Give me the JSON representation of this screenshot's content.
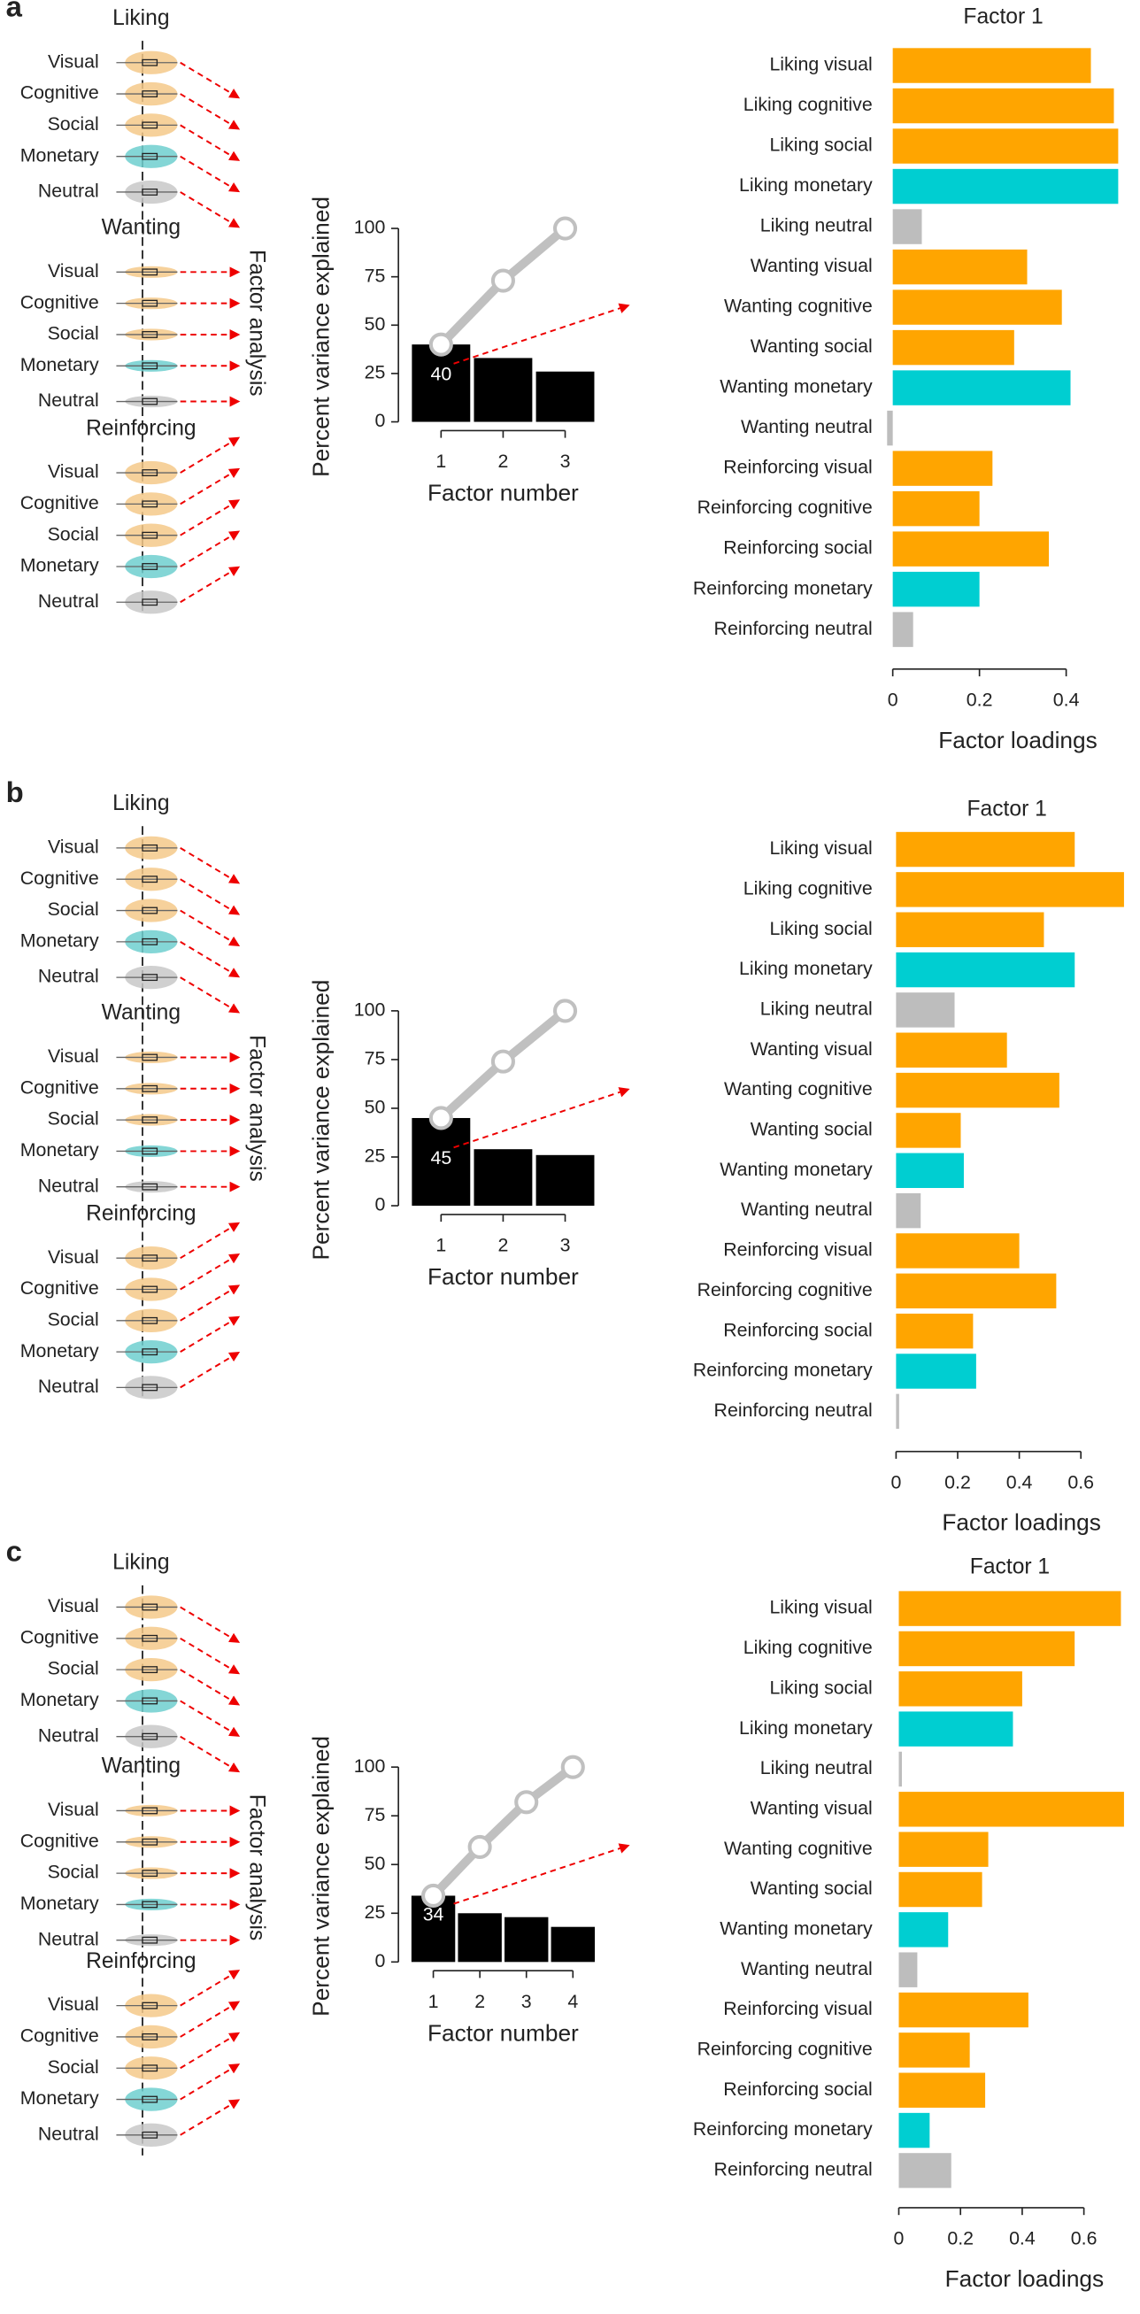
{
  "panels": [
    {
      "label": "a",
      "annotation": "Factor analysis",
      "groups": [
        {
          "title": "Liking",
          "items": [
            "Visual",
            "Cognitive",
            "Social",
            "Monetary",
            "Neutral"
          ]
        },
        {
          "title": "Wanting",
          "items": [
            "Visual",
            "Cognitive",
            "Social",
            "Monetary",
            "Neutral"
          ]
        },
        {
          "title": "Reinforcing",
          "items": [
            "Visual",
            "Cognitive",
            "Social",
            "Monetary",
            "Neutral"
          ]
        }
      ],
      "violin_colors": [
        "#f5c98a",
        "#f5c98a",
        "#f5c98a",
        "#6fcfcf",
        "#c8c8c8"
      ]
    },
    {
      "label": "b",
      "annotation": "Factor analysis",
      "groups": [
        {
          "title": "Liking",
          "items": [
            "Visual",
            "Cognitive",
            "Social",
            "Monetary",
            "Neutral"
          ]
        },
        {
          "title": "Wanting",
          "items": [
            "Visual",
            "Cognitive",
            "Social",
            "Monetary",
            "Neutral"
          ]
        },
        {
          "title": "Reinforcing",
          "items": [
            "Visual",
            "Cognitive",
            "Social",
            "Monetary",
            "Neutral"
          ]
        }
      ],
      "violin_colors": [
        "#f5c98a",
        "#f5c98a",
        "#f5c98a",
        "#6fcfcf",
        "#c8c8c8"
      ]
    },
    {
      "label": "c",
      "annotation": "Factor analysis",
      "groups": [
        {
          "title": "Liking",
          "items": [
            "Visual",
            "Cognitive",
            "Social",
            "Monetary",
            "Neutral"
          ]
        },
        {
          "title": "Wanting",
          "items": [
            "Visual",
            "Cognitive",
            "Social",
            "Monetary",
            "Neutral"
          ]
        },
        {
          "title": "Reinforcing",
          "items": [
            "Visual",
            "Cognitive",
            "Social",
            "Monetary",
            "Neutral"
          ]
        }
      ],
      "violin_colors": [
        "#f5c98a",
        "#f5c98a",
        "#f5c98a",
        "#6fcfcf",
        "#c8c8c8"
      ]
    }
  ],
  "chart_data": [
    {
      "type": "bar",
      "x": [
        1,
        2,
        3
      ],
      "bar_values": [
        40,
        33,
        26
      ],
      "value_labels": [
        "40",
        null,
        null
      ],
      "line_values": [
        40,
        73,
        100
      ],
      "bar_color": "#000000",
      "line_color": "#c0c0c0",
      "xlim": [
        0.5,
        3.5
      ],
      "xticks": [
        1,
        2,
        3
      ],
      "ylim": [
        0,
        100
      ],
      "yticks": [
        0,
        25,
        50,
        75,
        100
      ],
      "x_label": "Factor number",
      "y_label": "Percent variance explained"
    },
    {
      "type": "barh",
      "title": "Factor 1",
      "x_label": "Factor loadings",
      "categories": [
        "Liking visual",
        "Liking cognitive",
        "Liking social",
        "Liking monetary",
        "Liking neutral",
        "Wanting visual",
        "Wanting cognitive",
        "Wanting social",
        "Wanting monetary",
        "Wanting neutral",
        "Reinforcing visual",
        "Reinforcing cognitive",
        "Reinforcing social",
        "Reinforcing monetary",
        "Reinforcing neutral"
      ],
      "values": [
        0.457,
        0.51,
        0.52,
        0.52,
        0.067,
        0.31,
        0.39,
        0.28,
        0.41,
        -0.013,
        0.23,
        0.2,
        0.36,
        0.2,
        0.047
      ],
      "colors": [
        "#ffa500",
        "#ffa500",
        "#ffa500",
        "#00ced1",
        "#bdbdbd",
        "#ffa500",
        "#ffa500",
        "#ffa500",
        "#00ced1",
        "#bdbdbd",
        "#ffa500",
        "#ffa500",
        "#ffa500",
        "#00ced1",
        "#bdbdbd"
      ],
      "xlim": [
        -0.02,
        0.53
      ],
      "xticks": [
        0,
        0.2,
        0.4
      ]
    },
    {
      "type": "bar",
      "x": [
        1,
        2,
        3
      ],
      "bar_values": [
        45,
        29,
        26
      ],
      "value_labels": [
        "45",
        null,
        null
      ],
      "line_values": [
        45,
        74,
        100
      ],
      "bar_color": "#000000",
      "line_color": "#c0c0c0",
      "xlim": [
        0.5,
        3.5
      ],
      "xticks": [
        1,
        2,
        3
      ],
      "ylim": [
        0,
        100
      ],
      "yticks": [
        0,
        25,
        50,
        75,
        100
      ],
      "x_label": "Factor number",
      "y_label": "Percent variance explained"
    },
    {
      "type": "barh",
      "title": "Factor 1",
      "x_label": "Factor loadings",
      "categories": [
        "Liking visual",
        "Liking cognitive",
        "Liking social",
        "Liking monetary",
        "Liking neutral",
        "Wanting visual",
        "Wanting cognitive",
        "Wanting social",
        "Wanting monetary",
        "Wanting neutral",
        "Reinforcing visual",
        "Reinforcing cognitive",
        "Reinforcing social",
        "Reinforcing monetary",
        "Reinforcing neutral"
      ],
      "values": [
        0.58,
        0.74,
        0.48,
        0.58,
        0.19,
        0.36,
        0.53,
        0.21,
        0.22,
        0.08,
        0.4,
        0.52,
        0.25,
        0.26,
        0.01
      ],
      "colors": [
        "#ffa500",
        "#ffa500",
        "#ffa500",
        "#00ced1",
        "#bdbdbd",
        "#ffa500",
        "#ffa500",
        "#ffa500",
        "#00ced1",
        "#bdbdbd",
        "#ffa500",
        "#ffa500",
        "#ffa500",
        "#00ced1",
        "#bdbdbd"
      ],
      "xlim": [
        -0.02,
        0.74
      ],
      "xticks": [
        0,
        0.2,
        0.4,
        0.6
      ]
    },
    {
      "type": "bar",
      "x": [
        1,
        2,
        3,
        4
      ],
      "bar_values": [
        34,
        25,
        23,
        18
      ],
      "value_labels": [
        "34",
        null,
        null,
        null
      ],
      "line_values": [
        34,
        59,
        82,
        100
      ],
      "bar_color": "#000000",
      "line_color": "#c0c0c0",
      "xlim": [
        0.5,
        4.5
      ],
      "xticks": [
        1,
        2,
        3,
        4
      ],
      "ylim": [
        0,
        100
      ],
      "yticks": [
        0,
        25,
        50,
        75,
        100
      ],
      "x_label": "Factor number",
      "y_label": "Percent variance explained"
    },
    {
      "type": "barh",
      "title": "Factor 1",
      "x_label": "Factor loadings",
      "categories": [
        "Liking visual",
        "Liking cognitive",
        "Liking social",
        "Liking monetary",
        "Liking neutral",
        "Wanting visual",
        "Wanting cognitive",
        "Wanting social",
        "Wanting monetary",
        "Wanting neutral",
        "Reinforcing visual",
        "Reinforcing cognitive",
        "Reinforcing social",
        "Reinforcing monetary",
        "Reinforcing neutral"
      ],
      "values": [
        0.72,
        0.57,
        0.4,
        0.37,
        0.01,
        0.73,
        0.29,
        0.27,
        0.16,
        0.06,
        0.42,
        0.23,
        0.28,
        0.1,
        0.17
      ],
      "colors": [
        "#ffa500",
        "#ffa500",
        "#ffa500",
        "#00ced1",
        "#bdbdbd",
        "#ffa500",
        "#ffa500",
        "#ffa500",
        "#00ced1",
        "#bdbdbd",
        "#ffa500",
        "#ffa500",
        "#ffa500",
        "#00ced1",
        "#bdbdbd"
      ],
      "xlim": [
        -0.01,
        0.73
      ],
      "xticks": [
        0,
        0.2,
        0.4,
        0.6
      ]
    }
  ]
}
